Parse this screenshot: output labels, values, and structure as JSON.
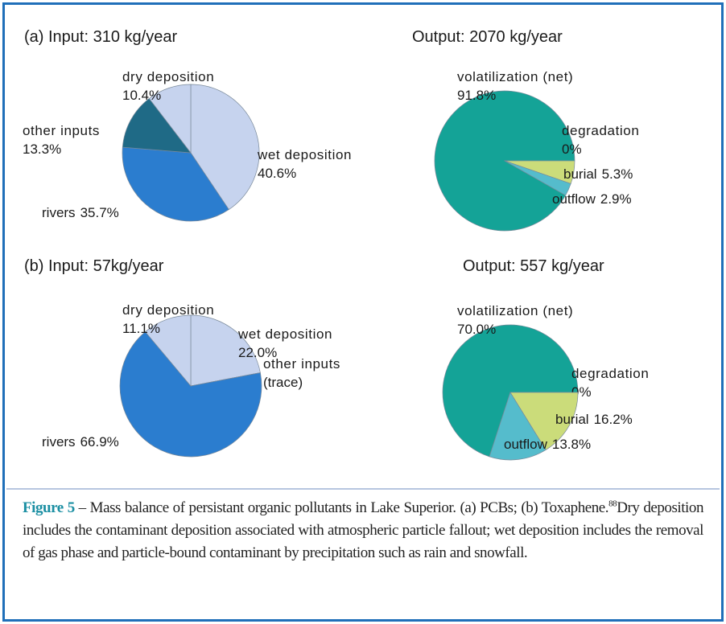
{
  "chart_data": [
    {
      "type": "pie",
      "title": "(a) Input: 310 kg/year",
      "categories": [
        "wet deposition",
        "rivers",
        "other inputs",
        "dry deposition"
      ],
      "values": [
        40.6,
        35.7,
        13.3,
        10.4
      ],
      "value_labels": [
        "40.6%",
        "35.7%",
        "13.3%",
        "10.4%"
      ],
      "colors": [
        "#c6d3ee",
        "#2b7dcf",
        "#1f6a86",
        "#c6d3ee"
      ]
    },
    {
      "type": "pie",
      "title": "Output: 2070 kg/year",
      "categories": [
        "volatilization (net)",
        "degradation",
        "burial",
        "outflow"
      ],
      "values": [
        91.8,
        0,
        5.3,
        2.9
      ],
      "value_labels": [
        "91.8%",
        "0%",
        "5.3%",
        "2.9%"
      ],
      "colors": [
        "#14a397",
        "#cbdc7a",
        "#cbdc7a",
        "#55bccc"
      ]
    },
    {
      "type": "pie",
      "title": "(b) Input: 57kg/year",
      "categories": [
        "wet deposition",
        "other inputs",
        "rivers",
        "dry deposition"
      ],
      "values": [
        22.0,
        0,
        66.9,
        11.1
      ],
      "value_labels": [
        "22.0%",
        "(trace)",
        "66.9%",
        "11.1%"
      ],
      "colors": [
        "#c6d3ee",
        "#1f6a86",
        "#2b7dcf",
        "#c6d3ee"
      ]
    },
    {
      "type": "pie",
      "title": "Output: 557 kg/year",
      "categories": [
        "volatilization (net)",
        "degradation",
        "burial",
        "outflow"
      ],
      "values": [
        70.0,
        0,
        16.2,
        13.8
      ],
      "value_labels": [
        "70.0%",
        "0%",
        "16.2%",
        "13.8%"
      ],
      "colors": [
        "#14a397",
        "#cbdc7a",
        "#cbdc7a",
        "#55bccc"
      ]
    }
  ],
  "caption": {
    "label": "Figure 5",
    "text": " – Mass balance of persistant organic pollutants in Lake Superior. (a) PCBs; (b) Toxaphene.",
    "ref": "88",
    "text2": "Dry deposition includes the contaminant deposition associated with atmospheric particle fallout; wet deposition includes the removal of gas phase and particle-bound contaminant by precipitation such as rain and snowfall."
  }
}
